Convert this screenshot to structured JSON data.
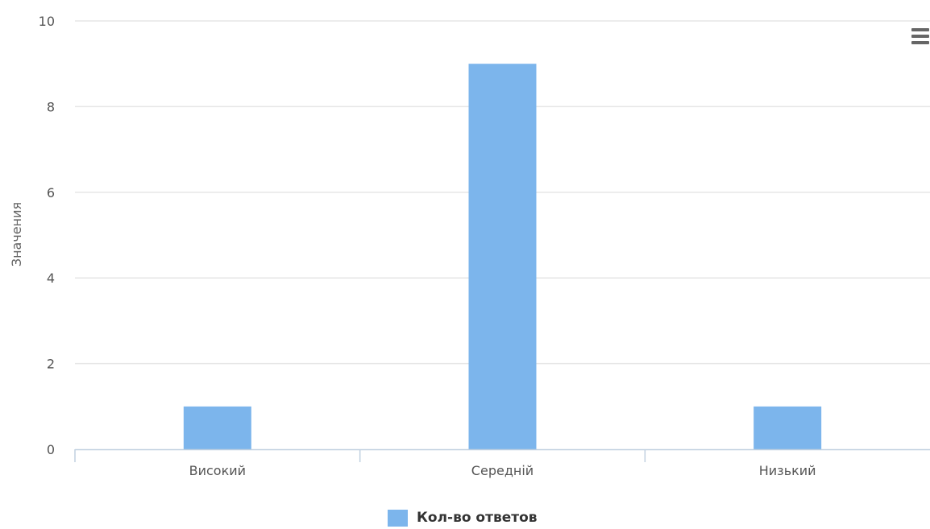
{
  "chart_data": {
    "type": "bar",
    "categories": [
      "Високий",
      "Середній",
      "Низький"
    ],
    "series": [
      {
        "name": "Кол-во ответов",
        "values": [
          1,
          9,
          1
        ],
        "color": "#7cb5ec"
      }
    ],
    "title": "",
    "xlabel": "",
    "ylabel": "Значения",
    "ylim": [
      0,
      10
    ],
    "yticks": [
      "0",
      "2",
      "4",
      "6",
      "8",
      "10"
    ],
    "grid": true,
    "legend_position": "bottom-center"
  },
  "toolbar": {
    "menu_icon": "hamburger-menu-icon"
  },
  "legend": {
    "label": "Кол-во ответов",
    "color": "#7cb5ec"
  },
  "colors": {
    "bar": "#7cb5ec",
    "grid": "#e6e6e6",
    "axis": "#c0d0e0",
    "tick_text": "#555555",
    "axis_title": "#666666"
  }
}
